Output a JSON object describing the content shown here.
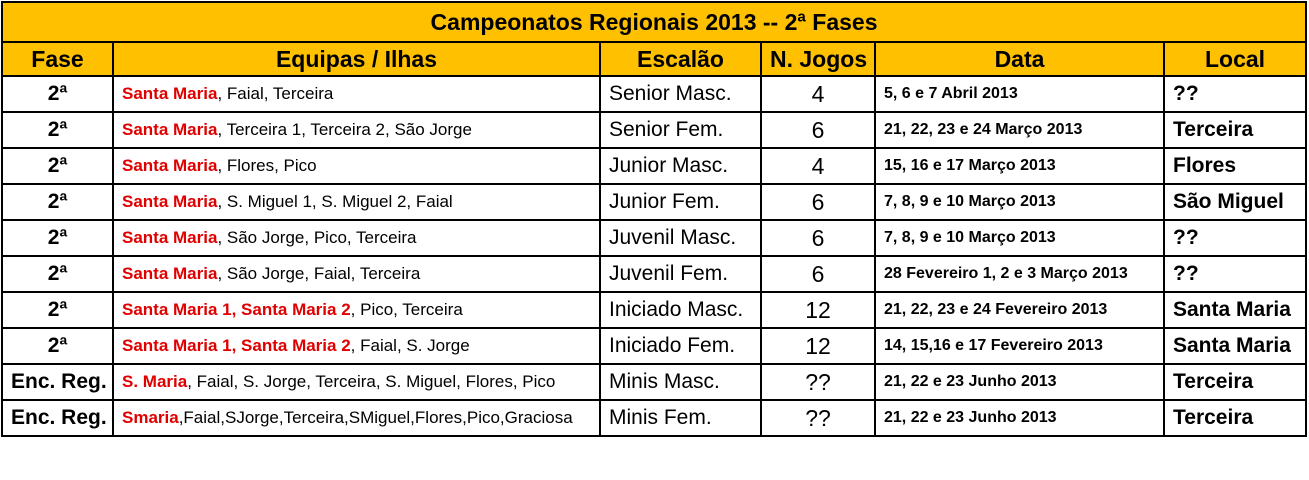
{
  "title": "Campeonatos Regionais 2013 -- 2ª Fases",
  "headers": {
    "fase": "Fase",
    "equipas": "Equipas / Ilhas",
    "escalao": "Escalão",
    "jogos": "N. Jogos",
    "data": "Data",
    "local": "Local"
  },
  "rows": [
    {
      "fase": "2ª",
      "equipas_hl": "Santa Maria",
      "equipas_rest": ", Faial, Terceira",
      "escalao": "Senior Masc.",
      "jogos": "4",
      "data": "5, 6 e 7 Abril 2013",
      "local": "??"
    },
    {
      "fase": "2ª",
      "equipas_hl": "Santa Maria",
      "equipas_rest": ", Terceira 1, Terceira 2, São Jorge",
      "escalao": "Senior Fem.",
      "jogos": "6",
      "data": "21, 22, 23 e 24 Março 2013",
      "local": "Terceira"
    },
    {
      "fase": "2ª",
      "equipas_hl": "Santa Maria",
      "equipas_rest": ", Flores, Pico",
      "escalao": "Junior Masc.",
      "jogos": "4",
      "data": "15, 16 e 17 Março 2013",
      "local": "Flores"
    },
    {
      "fase": "2ª",
      "equipas_hl": "Santa Maria",
      "equipas_rest": ", S. Miguel 1, S. Miguel 2, Faial",
      "escalao": "Junior Fem.",
      "jogos": "6",
      "data": "7, 8, 9 e 10 Março 2013",
      "local": "São Miguel"
    },
    {
      "fase": "2ª",
      "equipas_hl": "Santa Maria",
      "equipas_rest": ", São Jorge, Pico, Terceira",
      "escalao": "Juvenil Masc.",
      "jogos": "6",
      "data": "7, 8, 9 e 10 Março 2013",
      "local": "??"
    },
    {
      "fase": "2ª",
      "equipas_hl": "Santa Maria",
      "equipas_rest": ", São Jorge, Faial, Terceira",
      "escalao": "Juvenil Fem.",
      "jogos": "6",
      "data": "28 Fevereiro 1, 2 e 3 Março 2013",
      "local": "??"
    },
    {
      "fase": "2ª",
      "equipas_hl": "Santa Maria 1, Santa Maria 2",
      "equipas_rest": ", Pico, Terceira",
      "escalao": "Iniciado Masc.",
      "jogos": "12",
      "data": "21, 22, 23 e 24 Fevereiro 2013",
      "local": "Santa Maria"
    },
    {
      "fase": "2ª",
      "equipas_hl": "Santa Maria 1, Santa Maria 2",
      "equipas_rest": ", Faial, S. Jorge",
      "escalao": "Iniciado Fem.",
      "jogos": "12",
      "data": "14, 15,16 e 17 Fevereiro 2013",
      "local": "Santa Maria"
    },
    {
      "fase": "Enc. Reg.",
      "equipas_hl": "S. Maria",
      "equipas_rest": ", Faial, S. Jorge, Terceira, S. Miguel, Flores, Pico",
      "escalao": "Minis Masc.",
      "jogos": "??",
      "data": "21, 22 e 23 Junho 2013",
      "local": "Terceira"
    },
    {
      "fase": "Enc. Reg.",
      "equipas_hl": "Smaria",
      "equipas_rest": ",Faial,SJorge,Terceira,SMiguel,Flores,Pico,Graciosa",
      "escalao": "Minis Fem.",
      "jogos": "??",
      "data": "21, 22 e 23 Junho 2013",
      "local": "Terceira"
    }
  ],
  "colors": {
    "header_bg": "#ffc000",
    "highlight_text": "#e00000",
    "border": "#000000"
  }
}
